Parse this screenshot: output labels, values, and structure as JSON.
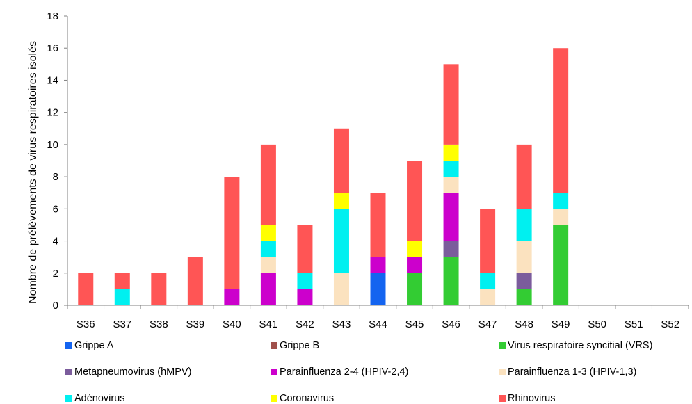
{
  "chart_data": {
    "type": "bar",
    "stacked": true,
    "title": "",
    "xlabel": "",
    "ylabel": "Nombre de prélèvements de virus respiratoires isolés",
    "ylim": [
      0,
      18
    ],
    "yticks": [
      "0",
      "2",
      "4",
      "6",
      "8",
      "10",
      "12",
      "14",
      "16",
      "18"
    ],
    "categories": [
      "S36",
      "S37",
      "S38",
      "S39",
      "S40",
      "S41",
      "S42",
      "S43",
      "S44",
      "S45",
      "S46",
      "S47",
      "S48",
      "S49",
      "S50",
      "S51",
      "S52"
    ],
    "grid": false,
    "legend_position": "bottom",
    "series": [
      {
        "name": "Grippe A",
        "color": "#1464F0",
        "values": [
          0,
          0,
          0,
          0,
          0,
          0,
          0,
          0,
          2,
          0,
          0,
          0,
          0,
          0,
          0,
          0,
          0
        ]
      },
      {
        "name": "Grippe B",
        "color": "#A0504B",
        "values": [
          0,
          0,
          0,
          0,
          0,
          0,
          0,
          0,
          0,
          0,
          0,
          0,
          0,
          0,
          0,
          0,
          0
        ]
      },
      {
        "name": "Virus respiratoire syncitial (VRS)",
        "color": "#33CC33",
        "values": [
          0,
          0,
          0,
          0,
          0,
          0,
          0,
          0,
          0,
          2,
          3,
          0,
          1,
          5,
          0,
          0,
          0
        ]
      },
      {
        "name": "Metapneumovirus (hMPV)",
        "color": "#7B5C9C",
        "values": [
          0,
          0,
          0,
          0,
          0,
          0,
          0,
          0,
          0,
          0,
          1,
          0,
          1,
          0,
          0,
          0,
          0
        ]
      },
      {
        "name": "Parainfluenza 2-4 (HPIV-2,4)",
        "color": "#CC00CC",
        "values": [
          0,
          0,
          0,
          0,
          1,
          2,
          1,
          0,
          1,
          1,
          3,
          0,
          0,
          0,
          0,
          0,
          0
        ]
      },
      {
        "name": "Parainfluenza 1-3 (HPIV-1,3)",
        "color": "#FBE2BF",
        "values": [
          0,
          0,
          0,
          0,
          0,
          1,
          0,
          2,
          0,
          0,
          1,
          1,
          2,
          1,
          0,
          0,
          0
        ]
      },
      {
        "name": "Adénovirus",
        "color": "#00F0F0",
        "values": [
          0,
          1,
          0,
          0,
          0,
          1,
          1,
          4,
          0,
          0,
          1,
          1,
          2,
          1,
          0,
          0,
          0
        ]
      },
      {
        "name": "Coronavirus",
        "color": "#FFFF00",
        "values": [
          0,
          0,
          0,
          0,
          0,
          1,
          0,
          1,
          0,
          1,
          1,
          0,
          0,
          0,
          0,
          0,
          0
        ]
      },
      {
        "name": "Rhinovirus",
        "color": "#FF5555",
        "values": [
          2,
          1,
          2,
          3,
          7,
          5,
          3,
          4,
          4,
          5,
          5,
          4,
          4,
          9,
          0,
          0,
          0
        ]
      }
    ]
  }
}
